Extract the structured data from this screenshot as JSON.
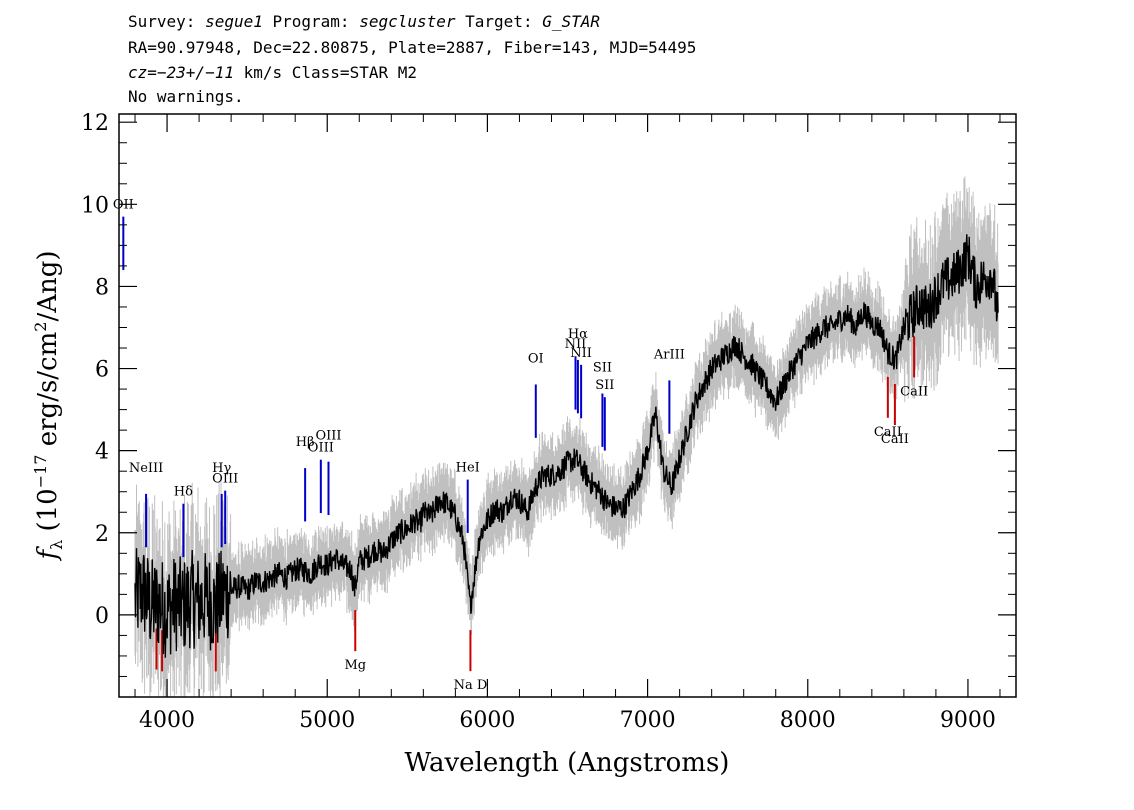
{
  "header": {
    "survey_label": "Survey: ",
    "survey": "segue1",
    "program_label": " Program: ",
    "program": "segcluster",
    "target_label": " Target: ",
    "target": "G_STAR",
    "line2": "RA=90.97948, Dec=22.80875, Plate=2887, Fiber=143, MJD=54495",
    "cz": "cz=−23+/−11",
    "line3_rest": " km/s Class=STAR M2",
    "line4": "No warnings."
  },
  "colors": {
    "spectrum": "#000000",
    "error": "#c0c0c0",
    "emission": "#0000cc",
    "absorption": "#cc0000"
  },
  "chart_data": {
    "type": "line",
    "title": "",
    "xlabel": "Wavelength (Angstroms)",
    "ylabel": "fλ (10⁻¹⁷ erg/s/cm²/Ang)",
    "xlim": [
      3700,
      9300
    ],
    "ylim": [
      -2,
      12.2
    ],
    "xticks": [
      4000,
      5000,
      6000,
      7000,
      8000,
      9000
    ],
    "xtick_labels": [
      "4000",
      "5000",
      "6000",
      "7000",
      "8000",
      "9000"
    ],
    "yticks": [
      0,
      2,
      4,
      6,
      8,
      10,
      12
    ],
    "ytick_labels": [
      "0",
      "2",
      "4",
      "6",
      "8",
      "10",
      "12"
    ],
    "grid": false,
    "series": [
      {
        "x": [
          3800,
          3850,
          3900,
          3950,
          4000,
          4050,
          4100,
          4150,
          4200,
          4250,
          4300,
          4350,
          4400,
          4450,
          4500,
          4550,
          4600,
          4650,
          4700,
          4750,
          4800,
          4850,
          4900,
          4950,
          5000,
          5050,
          5100,
          5150,
          5170,
          5200,
          5250,
          5300,
          5350,
          5400,
          5450,
          5500,
          5550,
          5577,
          5600,
          5650,
          5700,
          5750,
          5800,
          5850,
          5893,
          5950,
          6000,
          6050,
          6100,
          6150,
          6200,
          6250,
          6300,
          6350,
          6400,
          6450,
          6500,
          6550,
          6600,
          6650,
          6700,
          6750,
          6800,
          6850,
          6900,
          6950,
          7000,
          7050,
          7100,
          7150,
          7200,
          7250,
          7300,
          7350,
          7400,
          7450,
          7500,
          7550,
          7600,
          7650,
          7700,
          7750,
          7800,
          7850,
          7900,
          7950,
          8000,
          8050,
          8100,
          8150,
          8200,
          8250,
          8300,
          8350,
          8400,
          8450,
          8500,
          8550,
          8600,
          8650,
          8700,
          8750,
          8800,
          8850,
          8900,
          8950,
          9000,
          9050,
          9100,
          9150,
          9190
        ],
        "y": [
          0.4,
          0.6,
          0.2,
          0.3,
          0.1,
          0.3,
          0.2,
          0.4,
          0.3,
          0.4,
          0.2,
          0.5,
          0.6,
          0.7,
          0.6,
          0.8,
          0.8,
          0.9,
          1.0,
          0.9,
          1.1,
          1.1,
          1.0,
          1.3,
          1.2,
          1.4,
          1.2,
          1.1,
          0.6,
          1.3,
          1.4,
          1.6,
          1.5,
          1.8,
          2.0,
          2.1,
          2.3,
          2.2,
          2.5,
          2.4,
          2.8,
          2.7,
          2.4,
          1.8,
          0.2,
          1.9,
          2.3,
          2.6,
          2.5,
          2.9,
          2.8,
          2.5,
          3.1,
          3.4,
          3.4,
          3.5,
          3.7,
          3.8,
          3.5,
          3.2,
          3.0,
          2.7,
          2.6,
          2.6,
          3.0,
          3.4,
          4.0,
          4.9,
          3.5,
          3.1,
          3.8,
          4.5,
          5.2,
          5.6,
          6.0,
          6.2,
          6.4,
          6.6,
          6.3,
          6.1,
          5.8,
          5.5,
          5.2,
          5.6,
          6.0,
          6.3,
          6.6,
          6.8,
          7.0,
          7.0,
          7.2,
          7.3,
          7.0,
          7.4,
          7.1,
          7.0,
          6.4,
          6.2,
          7.0,
          7.3,
          7.6,
          7.4,
          7.8,
          8.1,
          8.2,
          8.4,
          8.8,
          8.0,
          8.2,
          8.3,
          7.2
        ]
      }
    ],
    "line_labels": [
      {
        "name": "OII",
        "wavelength": 3727,
        "kind": "emission"
      },
      {
        "name": "NeIII",
        "wavelength": 3869,
        "kind": "emission"
      },
      {
        "name": "Hδ",
        "wavelength": 4102,
        "kind": "emission"
      },
      {
        "name": "Hγ",
        "wavelength": 4341,
        "kind": "emission"
      },
      {
        "name": "OIII",
        "wavelength": 4363,
        "kind": "emission"
      },
      {
        "name": "Hβ",
        "wavelength": 4862,
        "kind": "emission"
      },
      {
        "name": "OIII",
        "wavelength": 4960,
        "kind": "emission"
      },
      {
        "name": "OIII",
        "wavelength": 5008,
        "kind": "emission"
      },
      {
        "name": "HeI",
        "wavelength": 5877,
        "kind": "emission"
      },
      {
        "name": "OI",
        "wavelength": 6302,
        "kind": "emission"
      },
      {
        "name": "NII",
        "wavelength": 6550,
        "kind": "emission"
      },
      {
        "name": "Hα",
        "wavelength": 6565,
        "kind": "emission"
      },
      {
        "name": "NII",
        "wavelength": 6585,
        "kind": "emission"
      },
      {
        "name": "SII",
        "wavelength": 6718,
        "kind": "emission"
      },
      {
        "name": "SII",
        "wavelength": 6733,
        "kind": "emission"
      },
      {
        "name": "ArIII",
        "wavelength": 7136,
        "kind": "emission"
      },
      {
        "name": "Mg",
        "wavelength": 5175,
        "kind": "absorption"
      },
      {
        "name": "Na D",
        "wavelength": 5894,
        "kind": "absorption"
      },
      {
        "name": "CaII",
        "wavelength": 8500,
        "kind": "absorption"
      },
      {
        "name": "CaII",
        "wavelength": 8544,
        "kind": "absorption"
      },
      {
        "name": "CaII",
        "wavelength": 8664,
        "kind": "absorption"
      },
      {
        "name": "",
        "wavelength": 4304,
        "kind": "absorption"
      },
      {
        "name": "",
        "wavelength": 3934,
        "kind": "absorption"
      },
      {
        "name": "",
        "wavelength": 3969,
        "kind": "absorption"
      }
    ]
  }
}
